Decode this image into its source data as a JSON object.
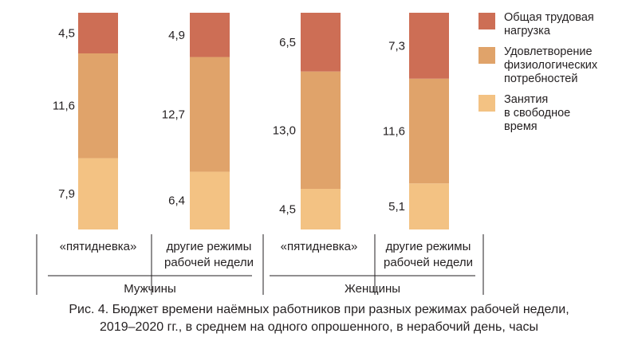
{
  "chart_data": {
    "type": "bar",
    "stacked": true,
    "categories": [
      "«пятидневка»",
      "другие режимы\nрабочей недели",
      "«пятидневка»",
      "другие режимы\nрабочей недели"
    ],
    "groups": [
      "Мужчины",
      "Женщины"
    ],
    "series": [
      {
        "name": "Занятия\nв свободное\nвремя",
        "color": "#f3c283",
        "values": [
          7.9,
          6.4,
          4.5,
          5.1
        ],
        "labels": [
          "7,9",
          "6,4",
          "4,5",
          "5,1"
        ]
      },
      {
        "name": "Удовлетворение\nфизиологических\nпотребностей",
        "color": "#e0a36a",
        "values": [
          11.6,
          12.7,
          13.0,
          11.6
        ],
        "labels": [
          "11,6",
          "12,7",
          "13,0",
          "11,6"
        ]
      },
      {
        "name": "Общая трудовая\nнагрузка",
        "color": "#cd6e55",
        "values": [
          4.5,
          4.9,
          6.5,
          7.3
        ],
        "labels": [
          "4,5",
          "4,9",
          "6,5",
          "7,3"
        ]
      }
    ],
    "legend_position": "right",
    "grid": false
  },
  "caption": {
    "line1": "Рис. 4. Бюджет времени наёмных работников при разных режимах рабочей недели,",
    "line2": "2019–2020 гг., в среднем на одного опрошенного, в нерабочий день, часы"
  }
}
